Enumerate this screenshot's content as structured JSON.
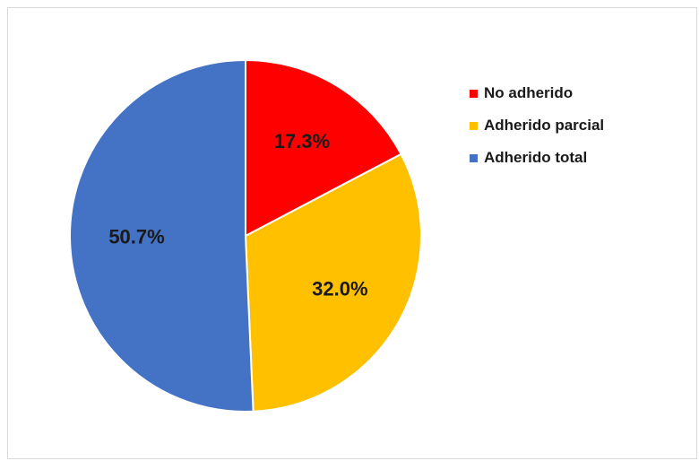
{
  "chart_data": {
    "type": "pie",
    "title": "",
    "legend_position": "right",
    "slices": [
      {
        "label": "No adherido",
        "value": 17.3,
        "display": "17.3%",
        "color": "#ff0000"
      },
      {
        "label": "Adherido parcial",
        "value": 32.0,
        "display": "32.0%",
        "color": "#ffc000"
      },
      {
        "label": "Adherido total",
        "value": 50.7,
        "display": "50.7%",
        "color": "#4472c4"
      }
    ]
  }
}
